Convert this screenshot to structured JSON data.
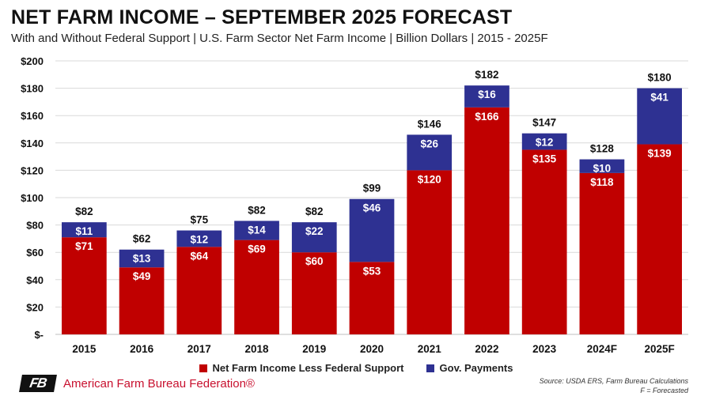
{
  "header": {
    "title": "NET FARM INCOME – SEPTEMBER 2025 FORECAST",
    "subtitle": "With and Without Federal Support | U.S. Farm Sector Net Farm Income | Billion Dollars | 2015 - 2025F"
  },
  "footer": {
    "logo_text": "FB",
    "org_name": "American Farm Bureau Federation®",
    "source_line1": "Source: USDA ERS, Farm Bureau Calculations",
    "source_line2": "F = Forecasted"
  },
  "colors": {
    "net_less_support": "#c00000",
    "gov_payments": "#2e3192",
    "grid": "#d9d9d9"
  },
  "chart_data": {
    "type": "bar",
    "stacked": true,
    "categories": [
      "2015",
      "2016",
      "2017",
      "2018",
      "2019",
      "2020",
      "2021",
      "2022",
      "2023",
      "2024F",
      "2025F"
    ],
    "series": [
      {
        "name": "Net Farm Income Less Federal Support",
        "values": [
          71,
          49,
          64,
          69,
          60,
          53,
          120,
          166,
          135,
          118,
          139
        ],
        "labels": [
          "$71",
          "$49",
          "$64",
          "$69",
          "$60",
          "$53",
          "$120",
          "$166",
          "$135",
          "$118",
          "$139"
        ]
      },
      {
        "name": "Gov. Payments",
        "values": [
          11,
          13,
          12,
          14,
          22,
          46,
          26,
          16,
          12,
          10,
          41
        ],
        "labels": [
          "$11",
          "$13",
          "$12",
          "$14",
          "$22",
          "$46",
          "$26",
          "$16",
          "$12",
          "$10",
          "$41"
        ]
      }
    ],
    "totals": [
      82,
      62,
      75,
      82,
      82,
      99,
      146,
      182,
      147,
      128,
      180
    ],
    "total_labels": [
      "$82",
      "$62",
      "$75",
      "$82",
      "$82",
      "$99",
      "$146",
      "$182",
      "$147",
      "$128",
      "$180"
    ],
    "ylim": [
      0,
      200
    ],
    "yticks": [
      0,
      20,
      40,
      60,
      80,
      100,
      120,
      140,
      160,
      180,
      200
    ],
    "ytick_labels": [
      "$-",
      "$20",
      "$40",
      "$60",
      "$80",
      "$100",
      "$120",
      "$140",
      "$160",
      "$180",
      "$200"
    ],
    "grid": true,
    "legend_position": "bottom"
  }
}
